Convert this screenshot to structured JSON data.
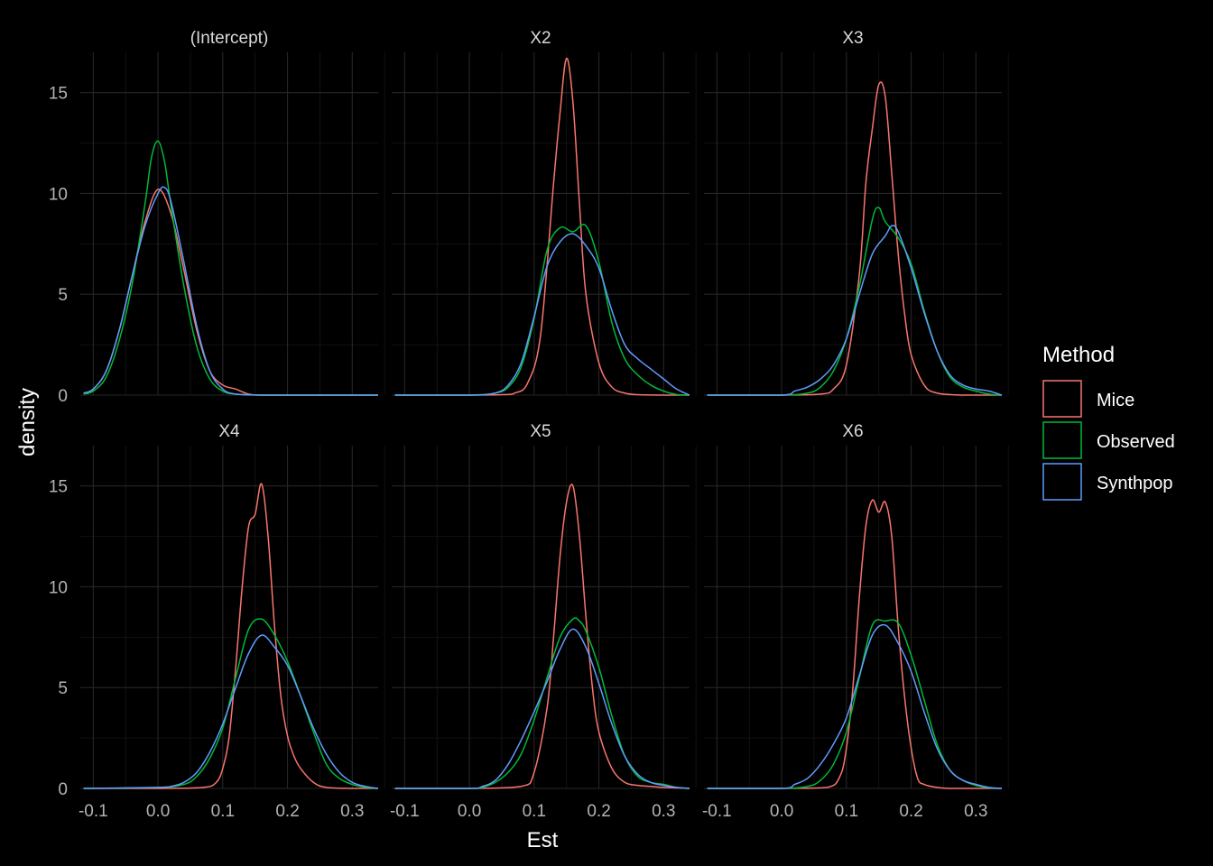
{
  "chart_data": {
    "type": "line",
    "title": "",
    "xlabel": "Est",
    "ylabel": "density",
    "xlim": [
      -0.12,
      0.34
    ],
    "ylim": [
      0,
      17
    ],
    "x_ticks": [
      -0.1,
      0.0,
      0.1,
      0.2,
      0.3
    ],
    "x_tick_labels": [
      "-0.1",
      "0.0",
      "0.1",
      "0.2",
      "0.3"
    ],
    "y_ticks": [
      0,
      5,
      10,
      15
    ],
    "y_tick_labels": [
      "0",
      "5",
      "10",
      "15"
    ],
    "grid": true,
    "legend": {
      "title": "Method",
      "placement": "right",
      "entries": [
        {
          "name": "Mice",
          "color": "#F8766D"
        },
        {
          "name": "Observed",
          "color": "#00BA38"
        },
        {
          "name": "Synthpop",
          "color": "#619CFF"
        }
      ]
    },
    "facets": [
      {
        "label": "(Intercept)",
        "series": [
          {
            "name": "Mice",
            "color": "#F8766D",
            "x": [
              -0.115,
              -0.1,
              -0.08,
              -0.06,
              -0.04,
              -0.02,
              0.0,
              0.02,
              0.04,
              0.06,
              0.08,
              0.1,
              0.12,
              0.14,
              0.16,
              0.2,
              0.25,
              0.3,
              0.34
            ],
            "y": [
              0.1,
              0.3,
              1.2,
              3.2,
              5.9,
              8.6,
              10.2,
              9.0,
              6.2,
              3.2,
              1.2,
              0.5,
              0.3,
              0.05,
              0,
              0,
              0,
              0,
              0
            ]
          },
          {
            "name": "Observed",
            "color": "#00BA38",
            "x": [
              -0.115,
              -0.1,
              -0.08,
              -0.06,
              -0.04,
              -0.02,
              -0.01,
              0.0,
              0.01,
              0.02,
              0.04,
              0.06,
              0.08,
              0.1,
              0.12,
              0.16,
              0.2,
              0.25,
              0.3,
              0.34
            ],
            "y": [
              0.05,
              0.2,
              0.9,
              2.7,
              5.5,
              9.5,
              11.8,
              12.6,
              11.6,
              9.4,
              5.4,
              2.4,
              0.8,
              0.2,
              0.05,
              0,
              0,
              0,
              0,
              0
            ]
          },
          {
            "name": "Synthpop",
            "color": "#619CFF",
            "x": [
              -0.115,
              -0.1,
              -0.08,
              -0.06,
              -0.04,
              -0.02,
              0.0,
              0.01,
              0.02,
              0.04,
              0.06,
              0.08,
              0.1,
              0.12,
              0.16,
              0.2,
              0.25,
              0.3,
              0.34
            ],
            "y": [
              0.1,
              0.3,
              1.2,
              3.2,
              5.9,
              8.4,
              10.0,
              10.3,
              9.6,
              6.6,
              3.4,
              1.2,
              0.3,
              0.05,
              0,
              0,
              0,
              0,
              0
            ]
          }
        ]
      },
      {
        "label": "X2",
        "series": [
          {
            "name": "Mice",
            "color": "#F8766D",
            "x": [
              -0.115,
              0.0,
              0.05,
              0.07,
              0.09,
              0.11,
              0.13,
              0.14,
              0.15,
              0.16,
              0.17,
              0.18,
              0.2,
              0.22,
              0.24,
              0.26,
              0.3,
              0.34
            ],
            "y": [
              0,
              0,
              0.02,
              0.1,
              0.6,
              3.0,
              10.5,
              14.0,
              16.7,
              14.5,
              9.5,
              5.0,
              1.6,
              0.4,
              0.1,
              0.02,
              0,
              0
            ]
          },
          {
            "name": "Observed",
            "color": "#00BA38",
            "x": [
              -0.115,
              0.0,
              0.04,
              0.06,
              0.08,
              0.1,
              0.12,
              0.14,
              0.16,
              0.18,
              0.2,
              0.22,
              0.24,
              0.26,
              0.28,
              0.3,
              0.32,
              0.34
            ],
            "y": [
              0,
              0,
              0.1,
              0.4,
              1.4,
              3.8,
              7.2,
              8.3,
              8.1,
              8.4,
              6.6,
              3.6,
              1.8,
              1.0,
              0.5,
              0.2,
              0.03,
              0
            ]
          },
          {
            "name": "Synthpop",
            "color": "#619CFF",
            "x": [
              -0.115,
              0.0,
              0.04,
              0.06,
              0.08,
              0.1,
              0.12,
              0.14,
              0.16,
              0.18,
              0.2,
              0.22,
              0.24,
              0.26,
              0.28,
              0.3,
              0.32,
              0.34
            ],
            "y": [
              0,
              0,
              0.1,
              0.5,
              1.6,
              3.9,
              6.4,
              7.6,
              8.0,
              7.4,
              6.3,
              4.2,
              2.5,
              1.8,
              1.3,
              0.8,
              0.3,
              0
            ]
          }
        ]
      },
      {
        "label": "X3",
        "series": [
          {
            "name": "Mice",
            "color": "#F8766D",
            "x": [
              -0.115,
              0.0,
              0.06,
              0.08,
              0.1,
              0.12,
              0.13,
              0.14,
              0.15,
              0.16,
              0.17,
              0.18,
              0.19,
              0.2,
              0.22,
              0.24,
              0.28,
              0.34
            ],
            "y": [
              0,
              0,
              0.05,
              0.3,
              1.5,
              6.0,
              10.5,
              13.2,
              15.4,
              14.8,
              11.0,
              7.0,
              4.0,
              2.0,
              0.5,
              0.1,
              0,
              0
            ]
          },
          {
            "name": "Observed",
            "color": "#00BA38",
            "x": [
              -0.115,
              0.0,
              0.04,
              0.06,
              0.08,
              0.1,
              0.12,
              0.14,
              0.15,
              0.16,
              0.18,
              0.2,
              0.22,
              0.24,
              0.26,
              0.28,
              0.3,
              0.32,
              0.34
            ],
            "y": [
              0,
              0,
              0.1,
              0.4,
              1.2,
              2.8,
              5.4,
              8.7,
              9.3,
              8.6,
              7.8,
              6.5,
              4.2,
              2.2,
              0.9,
              0.4,
              0.2,
              0.05,
              0
            ]
          },
          {
            "name": "Synthpop",
            "color": "#619CFF",
            "x": [
              -0.115,
              0.0,
              0.02,
              0.04,
              0.06,
              0.08,
              0.1,
              0.12,
              0.14,
              0.16,
              0.17,
              0.18,
              0.2,
              0.22,
              0.24,
              0.26,
              0.28,
              0.3,
              0.32,
              0.34
            ],
            "y": [
              0,
              0,
              0.2,
              0.4,
              0.8,
              1.5,
              2.8,
              5.0,
              7.0,
              7.9,
              8.4,
              8.1,
              6.3,
              4.1,
              2.2,
              1.0,
              0.5,
              0.3,
              0.2,
              0
            ]
          }
        ]
      },
      {
        "label": "X4",
        "series": [
          {
            "name": "Mice",
            "color": "#F8766D",
            "x": [
              -0.115,
              0.0,
              0.07,
              0.09,
              0.1,
              0.11,
              0.12,
              0.13,
              0.14,
              0.15,
              0.16,
              0.17,
              0.18,
              0.19,
              0.2,
              0.21,
              0.22,
              0.24,
              0.26,
              0.3,
              0.34
            ],
            "y": [
              0,
              0,
              0.05,
              0.3,
              1.0,
              2.6,
              6.0,
              10.0,
              13.0,
              13.6,
              15.1,
              12.5,
              8.0,
              4.5,
              2.6,
              1.6,
              1.0,
              0.3,
              0.05,
              0,
              0
            ]
          },
          {
            "name": "Observed",
            "color": "#00BA38",
            "x": [
              -0.115,
              0.0,
              0.04,
              0.06,
              0.08,
              0.1,
              0.12,
              0.14,
              0.16,
              0.18,
              0.2,
              0.22,
              0.24,
              0.26,
              0.28,
              0.3,
              0.32,
              0.34
            ],
            "y": [
              0,
              0.05,
              0.2,
              0.6,
              1.5,
              3.0,
              5.5,
              7.9,
              8.4,
              7.6,
              6.3,
              4.6,
              2.8,
              1.2,
              0.5,
              0.2,
              0.05,
              0
            ]
          },
          {
            "name": "Synthpop",
            "color": "#619CFF",
            "x": [
              -0.115,
              0.0,
              0.02,
              0.04,
              0.06,
              0.08,
              0.1,
              0.12,
              0.14,
              0.16,
              0.18,
              0.2,
              0.22,
              0.24,
              0.26,
              0.28,
              0.3,
              0.32,
              0.34
            ],
            "y": [
              0,
              0.05,
              0.1,
              0.3,
              0.8,
              1.8,
              3.2,
              5.0,
              6.7,
              7.6,
              7.0,
              6.1,
              4.6,
              3.0,
              1.7,
              0.8,
              0.3,
              0.1,
              0
            ]
          }
        ]
      },
      {
        "label": "X5",
        "series": [
          {
            "name": "Mice",
            "color": "#F8766D",
            "x": [
              -0.115,
              0.0,
              0.08,
              0.1,
              0.12,
              0.13,
              0.14,
              0.15,
              0.16,
              0.17,
              0.18,
              0.19,
              0.2,
              0.22,
              0.24,
              0.26,
              0.28,
              0.3,
              0.34
            ],
            "y": [
              0,
              0,
              0.1,
              0.8,
              4.0,
              7.5,
              11.5,
              14.2,
              15.0,
              12.5,
              8.5,
              5.0,
              2.8,
              1.0,
              0.3,
              0.15,
              0.1,
              0.05,
              0
            ]
          },
          {
            "name": "Observed",
            "color": "#00BA38",
            "x": [
              -0.115,
              0.0,
              0.02,
              0.04,
              0.06,
              0.08,
              0.1,
              0.12,
              0.14,
              0.16,
              0.17,
              0.18,
              0.2,
              0.22,
              0.24,
              0.26,
              0.28,
              0.3,
              0.32,
              0.34
            ],
            "y": [
              0,
              0,
              0.05,
              0.3,
              0.8,
              1.7,
              3.4,
              5.5,
              7.5,
              8.4,
              8.3,
              7.8,
              6.0,
              3.6,
              1.6,
              0.6,
              0.3,
              0.2,
              0.05,
              0
            ]
          },
          {
            "name": "Synthpop",
            "color": "#619CFF",
            "x": [
              -0.115,
              0.0,
              0.02,
              0.04,
              0.06,
              0.08,
              0.1,
              0.12,
              0.14,
              0.16,
              0.18,
              0.2,
              0.22,
              0.24,
              0.26,
              0.28,
              0.3,
              0.32,
              0.34
            ],
            "y": [
              0,
              0,
              0.1,
              0.4,
              1.2,
              2.4,
              3.8,
              5.3,
              6.9,
              7.9,
              7.0,
              5.2,
              3.2,
              1.6,
              0.7,
              0.3,
              0.15,
              0.05,
              0
            ]
          }
        ]
      },
      {
        "label": "X6",
        "series": [
          {
            "name": "Mice",
            "color": "#F8766D",
            "x": [
              -0.115,
              0.0,
              0.07,
              0.09,
              0.1,
              0.11,
              0.12,
              0.13,
              0.14,
              0.15,
              0.16,
              0.17,
              0.18,
              0.19,
              0.2,
              0.21,
              0.22,
              0.24,
              0.26,
              0.3,
              0.34
            ],
            "y": [
              0,
              0,
              0.05,
              0.6,
              2.0,
              5.0,
              9.5,
              13.0,
              14.3,
              13.7,
              14.2,
              12.5,
              8.0,
              4.5,
              2.0,
              0.5,
              0.2,
              0.05,
              0,
              0,
              0
            ]
          },
          {
            "name": "Observed",
            "color": "#00BA38",
            "x": [
              -0.115,
              0.0,
              0.04,
              0.06,
              0.08,
              0.1,
              0.12,
              0.14,
              0.16,
              0.18,
              0.2,
              0.22,
              0.24,
              0.26,
              0.28,
              0.3,
              0.32,
              0.34
            ],
            "y": [
              0,
              0,
              0.1,
              0.4,
              1.2,
              2.8,
              5.5,
              8.1,
              8.3,
              8.2,
              6.6,
              4.4,
              2.2,
              0.9,
              0.4,
              0.15,
              0.03,
              0
            ]
          },
          {
            "name": "Synthpop",
            "color": "#619CFF",
            "x": [
              -0.115,
              0.0,
              0.02,
              0.04,
              0.06,
              0.08,
              0.1,
              0.12,
              0.14,
              0.16,
              0.18,
              0.2,
              0.22,
              0.24,
              0.26,
              0.28,
              0.3,
              0.32,
              0.34
            ],
            "y": [
              0,
              0,
              0.2,
              0.5,
              1.2,
              2.2,
              3.5,
              5.6,
              7.6,
              8.1,
              7.2,
              5.8,
              3.8,
              2.0,
              0.9,
              0.4,
              0.2,
              0.05,
              0
            ]
          }
        ]
      }
    ]
  }
}
